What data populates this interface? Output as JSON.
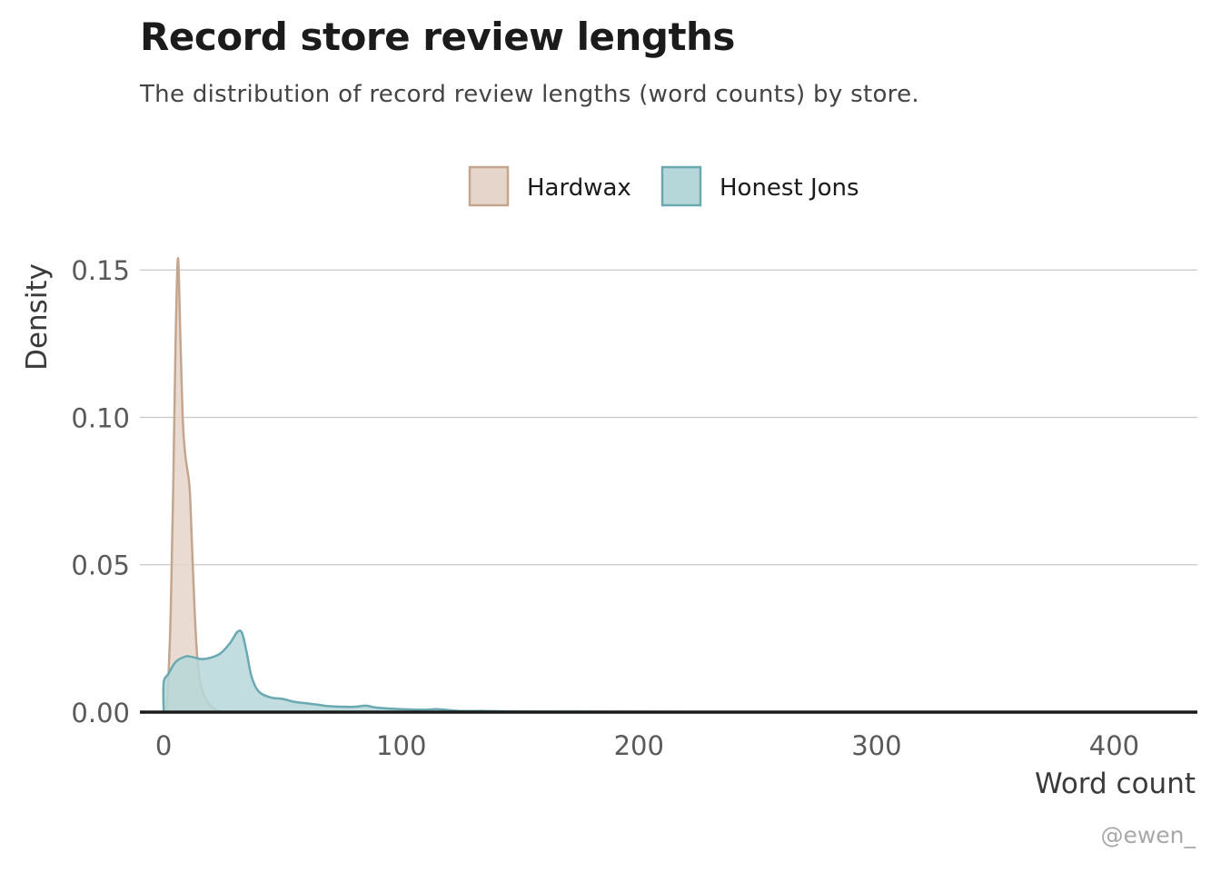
{
  "title": "Record store review lengths",
  "subtitle": "The distribution of record review lengths (word counts) by store.",
  "caption": "@ewen_",
  "colors": {
    "hardwax_fill": "#e6d5ca",
    "hardwax_stroke": "#c4a68f",
    "honest_fill": "#b6d7d9",
    "honest_stroke": "#6aa9b1",
    "grid": "#c8c8c8",
    "baseline": "#1b1b1b"
  },
  "chart_data": {
    "type": "area",
    "xlabel": "Word count",
    "ylabel": "Density",
    "xlim": [
      -10,
      435
    ],
    "ylim": [
      0,
      0.155
    ],
    "x_ticks": [
      0,
      100,
      200,
      300,
      400
    ],
    "x_tick_labels": [
      "0",
      "100",
      "200",
      "300",
      "400"
    ],
    "y_ticks": [
      0,
      0.05,
      0.1,
      0.15
    ],
    "y_tick_labels": [
      "0.00",
      "0.05",
      "0.10",
      "0.15"
    ],
    "grid": "horizontal major gridlines",
    "legend_position": "top",
    "series": [
      {
        "name": "Hardwax",
        "color": "#c4a68f",
        "points": [
          [
            1,
            0
          ],
          [
            2,
            0.012
          ],
          [
            3,
            0.035
          ],
          [
            4,
            0.075
          ],
          [
            5,
            0.125
          ],
          [
            6,
            0.154
          ],
          [
            7,
            0.128
          ],
          [
            8,
            0.1
          ],
          [
            9,
            0.088
          ],
          [
            10,
            0.082
          ],
          [
            11,
            0.075
          ],
          [
            12,
            0.055
          ],
          [
            13,
            0.035
          ],
          [
            14,
            0.02
          ],
          [
            15,
            0.012
          ],
          [
            16,
            0.008
          ],
          [
            18,
            0.004
          ],
          [
            20,
            0.002
          ],
          [
            23,
            0.0005
          ],
          [
            27,
            0
          ]
        ]
      },
      {
        "name": "Honest Jons",
        "color": "#6aa9b1",
        "points": [
          [
            0,
            0
          ],
          [
            0,
            0.01
          ],
          [
            2,
            0.013
          ],
          [
            5,
            0.017
          ],
          [
            8,
            0.0185
          ],
          [
            10,
            0.019
          ],
          [
            13,
            0.0185
          ],
          [
            16,
            0.018
          ],
          [
            20,
            0.0185
          ],
          [
            24,
            0.02
          ],
          [
            28,
            0.0235
          ],
          [
            31,
            0.0272
          ],
          [
            33,
            0.0268
          ],
          [
            35,
            0.02
          ],
          [
            37,
            0.012
          ],
          [
            40,
            0.007
          ],
          [
            45,
            0.005
          ],
          [
            50,
            0.0045
          ],
          [
            55,
            0.0035
          ],
          [
            60,
            0.003
          ],
          [
            65,
            0.0025
          ],
          [
            70,
            0.002
          ],
          [
            80,
            0.0018
          ],
          [
            85,
            0.0022
          ],
          [
            90,
            0.0015
          ],
          [
            100,
            0.001
          ],
          [
            110,
            0.0008
          ],
          [
            115,
            0.001
          ],
          [
            125,
            0.0004
          ],
          [
            135,
            0.0004
          ],
          [
            150,
            0.0002
          ],
          [
            200,
            0.0001
          ],
          [
            300,
            0
          ],
          [
            430,
            0
          ]
        ]
      }
    ]
  }
}
